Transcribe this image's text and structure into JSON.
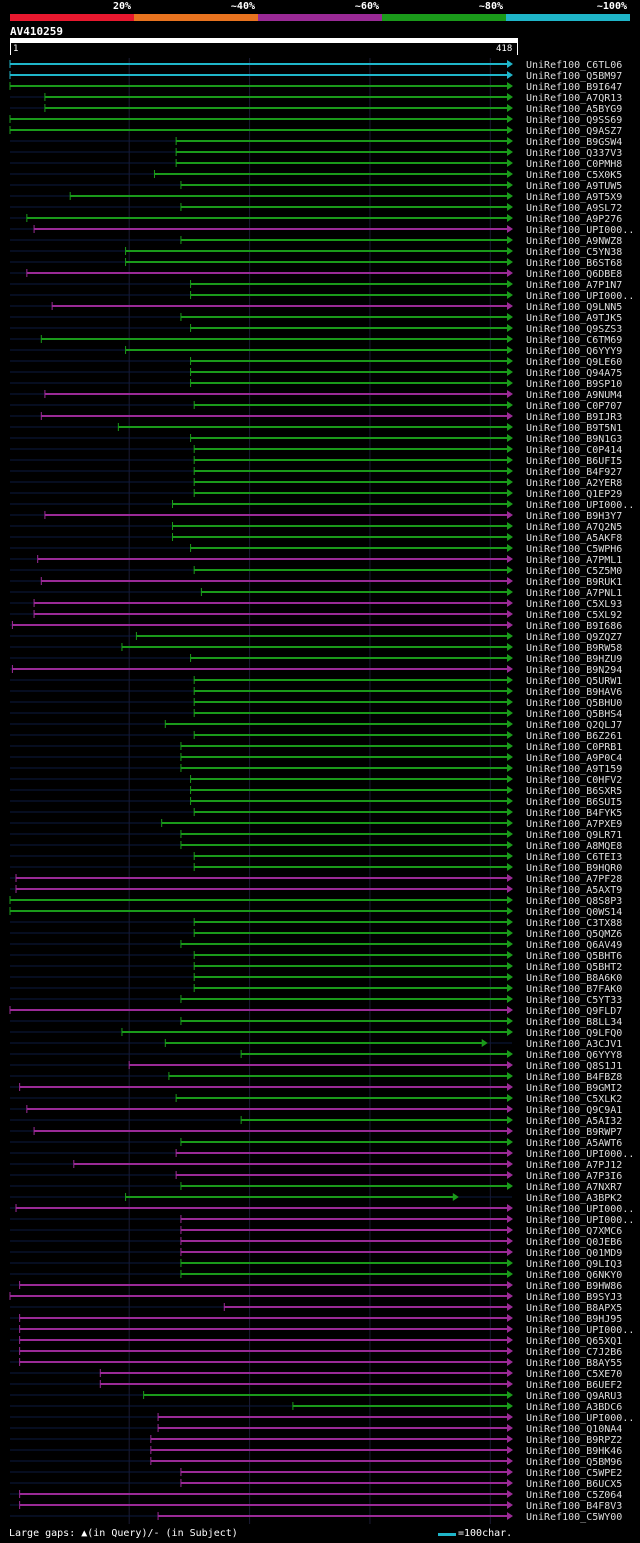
{
  "legend": {
    "labels": [
      "20%",
      "~40%",
      "~60%",
      "~80%",
      "~100%"
    ],
    "colors": [
      "#e8182e",
      "#e8731f",
      "#9a2a96",
      "#1a9a1a",
      "#1fb5c9"
    ]
  },
  "query": {
    "name": "AV410259",
    "start": "1",
    "end": "418",
    "length": 418
  },
  "hits": [
    {
      "name": "UniRef100_C6TL06",
      "color": "cyan",
      "start": 1,
      "end": 418
    },
    {
      "name": "UniRef100_Q5BM97",
      "color": "cyan",
      "start": 1,
      "end": 418
    },
    {
      "name": "UniRef100_B9I647",
      "color": "green",
      "start": 1,
      "end": 418
    },
    {
      "name": "UniRef100_A7QR13",
      "color": "green",
      "start": 30,
      "end": 418
    },
    {
      "name": "UniRef100_A5BYG9",
      "color": "green",
      "start": 30,
      "end": 418
    },
    {
      "name": "UniRef100_Q9SS69",
      "color": "green",
      "start": 1,
      "end": 418
    },
    {
      "name": "UniRef100_Q9ASZ7",
      "color": "green",
      "start": 1,
      "end": 418
    },
    {
      "name": "UniRef100_B9GSW4",
      "color": "green",
      "start": 139,
      "end": 418
    },
    {
      "name": "UniRef100_Q337V3",
      "color": "green",
      "start": 139,
      "end": 418
    },
    {
      "name": "UniRef100_C0PMH8",
      "color": "green",
      "start": 139,
      "end": 418
    },
    {
      "name": "UniRef100_C5X0K5",
      "color": "green",
      "start": 121,
      "end": 418
    },
    {
      "name": "UniRef100_A9TUW5",
      "color": "green",
      "start": 143,
      "end": 418
    },
    {
      "name": "UniRef100_A9T5X9",
      "color": "green",
      "start": 51,
      "end": 418
    },
    {
      "name": "UniRef100_A9SL72",
      "color": "green",
      "start": 143,
      "end": 418
    },
    {
      "name": "UniRef100_A9P276",
      "color": "green",
      "start": 15,
      "end": 418
    },
    {
      "name": "UniRef100_UPI000..",
      "color": "purple",
      "start": 21,
      "end": 418
    },
    {
      "name": "UniRef100_A9NWZ8",
      "color": "green",
      "start": 143,
      "end": 418
    },
    {
      "name": "UniRef100_C5YN38",
      "color": "green",
      "start": 97,
      "end": 418
    },
    {
      "name": "UniRef100_B6ST68",
      "color": "green",
      "start": 97,
      "end": 418
    },
    {
      "name": "UniRef100_Q6DBE8",
      "color": "purple",
      "start": 15,
      "end": 418
    },
    {
      "name": "UniRef100_A7P1N7",
      "color": "green",
      "start": 151,
      "end": 418
    },
    {
      "name": "UniRef100_UPI000..",
      "color": "green",
      "start": 151,
      "end": 418
    },
    {
      "name": "UniRef100_Q9LNN5",
      "color": "purple",
      "start": 36,
      "end": 418
    },
    {
      "name": "UniRef100_A9TJK5",
      "color": "green",
      "start": 143,
      "end": 418
    },
    {
      "name": "UniRef100_Q9SZS3",
      "color": "green",
      "start": 151,
      "end": 418
    },
    {
      "name": "UniRef100_C6TM69",
      "color": "green",
      "start": 27,
      "end": 418
    },
    {
      "name": "UniRef100_Q6YYY9",
      "color": "green",
      "start": 97,
      "end": 418
    },
    {
      "name": "UniRef100_Q9LE60",
      "color": "green",
      "start": 151,
      "end": 418
    },
    {
      "name": "UniRef100_Q94A75",
      "color": "green",
      "start": 151,
      "end": 418
    },
    {
      "name": "UniRef100_B9SP10",
      "color": "green",
      "start": 151,
      "end": 418
    },
    {
      "name": "UniRef100_A9NUM4",
      "color": "purple",
      "start": 30,
      "end": 418
    },
    {
      "name": "UniRef100_C0P707",
      "color": "green",
      "start": 154,
      "end": 418
    },
    {
      "name": "UniRef100_B9IJR3",
      "color": "purple",
      "start": 27,
      "end": 418
    },
    {
      "name": "UniRef100_B9T5N1",
      "color": "green",
      "start": 91,
      "end": 418
    },
    {
      "name": "UniRef100_B9N1G3",
      "color": "green",
      "start": 151,
      "end": 418
    },
    {
      "name": "UniRef100_C0P414",
      "color": "green",
      "start": 154,
      "end": 418
    },
    {
      "name": "UniRef100_B6UFI5",
      "color": "green",
      "start": 154,
      "end": 418
    },
    {
      "name": "UniRef100_B4F927",
      "color": "green",
      "start": 154,
      "end": 418
    },
    {
      "name": "UniRef100_A2YER8",
      "color": "green",
      "start": 154,
      "end": 418
    },
    {
      "name": "UniRef100_Q1EP29",
      "color": "green",
      "start": 154,
      "end": 418
    },
    {
      "name": "UniRef100_UPI000..",
      "color": "green",
      "start": 136,
      "end": 418
    },
    {
      "name": "UniRef100_B9H3Y7",
      "color": "purple",
      "start": 30,
      "end": 418
    },
    {
      "name": "UniRef100_A7Q2N5",
      "color": "green",
      "start": 136,
      "end": 418
    },
    {
      "name": "UniRef100_A5AKF8",
      "color": "green",
      "start": 136,
      "end": 418
    },
    {
      "name": "UniRef100_C5WPH6",
      "color": "green",
      "start": 151,
      "end": 418
    },
    {
      "name": "UniRef100_A7PML1",
      "color": "purple",
      "start": 24,
      "end": 418
    },
    {
      "name": "UniRef100_C5Z5M0",
      "color": "green",
      "start": 154,
      "end": 418
    },
    {
      "name": "UniRef100_B9RUK1",
      "color": "purple",
      "start": 27,
      "end": 418
    },
    {
      "name": "UniRef100_A7PNL1",
      "color": "green",
      "start": 160,
      "end": 418
    },
    {
      "name": "UniRef100_C5XL93",
      "color": "purple",
      "start": 21,
      "end": 418
    },
    {
      "name": "UniRef100_C5XL92",
      "color": "purple",
      "start": 21,
      "end": 418
    },
    {
      "name": "UniRef100_B9I686",
      "color": "purple",
      "start": 3,
      "end": 418
    },
    {
      "name": "UniRef100_Q9ZQZ7",
      "color": "green",
      "start": 106,
      "end": 418
    },
    {
      "name": "UniRef100_B9RW58",
      "color": "green",
      "start": 94,
      "end": 418
    },
    {
      "name": "UniRef100_B9HZU9",
      "color": "green",
      "start": 151,
      "end": 418
    },
    {
      "name": "UniRef100_B9N294",
      "color": "purple",
      "start": 3,
      "end": 418
    },
    {
      "name": "UniRef100_Q5URW1",
      "color": "green",
      "start": 154,
      "end": 418
    },
    {
      "name": "UniRef100_B9HAV6",
      "color": "green",
      "start": 154,
      "end": 418
    },
    {
      "name": "UniRef100_Q5BHU0",
      "color": "green",
      "start": 154,
      "end": 418
    },
    {
      "name": "UniRef100_Q5BHS4",
      "color": "green",
      "start": 154,
      "end": 418
    },
    {
      "name": "UniRef100_Q2QLJ7",
      "color": "green",
      "start": 130,
      "end": 418
    },
    {
      "name": "UniRef100_B6Z261",
      "color": "green",
      "start": 154,
      "end": 418
    },
    {
      "name": "UniRef100_C0PRB1",
      "color": "green",
      "start": 143,
      "end": 418
    },
    {
      "name": "UniRef100_A9P0C4",
      "color": "green",
      "start": 143,
      "end": 418
    },
    {
      "name": "UniRef100_A9T159",
      "color": "green",
      "start": 143,
      "end": 418
    },
    {
      "name": "UniRef100_C0HFV2",
      "color": "green",
      "start": 151,
      "end": 418
    },
    {
      "name": "UniRef100_B6SXR5",
      "color": "green",
      "start": 151,
      "end": 418
    },
    {
      "name": "UniRef100_B6SUI5",
      "color": "green",
      "start": 151,
      "end": 418
    },
    {
      "name": "UniRef100_B4FYK5",
      "color": "green",
      "start": 154,
      "end": 418
    },
    {
      "name": "UniRef100_A7PXE9",
      "color": "green",
      "start": 127,
      "end": 418
    },
    {
      "name": "UniRef100_Q9LR71",
      "color": "green",
      "start": 143,
      "end": 418
    },
    {
      "name": "UniRef100_A8MQE8",
      "color": "green",
      "start": 143,
      "end": 418
    },
    {
      "name": "UniRef100_C6TEI3",
      "color": "green",
      "start": 154,
      "end": 418
    },
    {
      "name": "UniRef100_B9HQR0",
      "color": "green",
      "start": 154,
      "end": 418
    },
    {
      "name": "UniRef100_A7PF28",
      "color": "purple",
      "start": 6,
      "end": 418
    },
    {
      "name": "UniRef100_A5AXT9",
      "color": "purple",
      "start": 6,
      "end": 418
    },
    {
      "name": "UniRef100_Q8S8P3",
      "color": "green",
      "start": 1,
      "end": 418
    },
    {
      "name": "UniRef100_Q0WS14",
      "color": "green",
      "start": 1,
      "end": 418
    },
    {
      "name": "UniRef100_C3TX88",
      "color": "green",
      "start": 154,
      "end": 418
    },
    {
      "name": "UniRef100_Q5QMZ6",
      "color": "green",
      "start": 154,
      "end": 418
    },
    {
      "name": "UniRef100_Q6AV49",
      "color": "green",
      "start": 143,
      "end": 418
    },
    {
      "name": "UniRef100_Q5BHT6",
      "color": "green",
      "start": 154,
      "end": 418
    },
    {
      "name": "UniRef100_Q5BHT2",
      "color": "green",
      "start": 154,
      "end": 418
    },
    {
      "name": "UniRef100_B8A6K0",
      "color": "green",
      "start": 154,
      "end": 418
    },
    {
      "name": "UniRef100_B7FAK0",
      "color": "green",
      "start": 154,
      "end": 418
    },
    {
      "name": "UniRef100_C5YT33",
      "color": "green",
      "start": 143,
      "end": 418
    },
    {
      "name": "UniRef100_Q9FLD7",
      "color": "purple",
      "start": 1,
      "end": 418
    },
    {
      "name": "UniRef100_B8LL34",
      "color": "green",
      "start": 143,
      "end": 418
    },
    {
      "name": "UniRef100_Q9LFQ0",
      "color": "green",
      "start": 94,
      "end": 418
    },
    {
      "name": "UniRef100_A3CJV1",
      "color": "green",
      "start": 130,
      "end": 397
    },
    {
      "name": "UniRef100_Q6YYY8",
      "color": "green",
      "start": 193,
      "end": 418
    },
    {
      "name": "UniRef100_Q8S1J1",
      "color": "purple",
      "start": 100,
      "end": 418
    },
    {
      "name": "UniRef100_B4FBZ8",
      "color": "green",
      "start": 133,
      "end": 418
    },
    {
      "name": "UniRef100_B9GMI2",
      "color": "purple",
      "start": 9,
      "end": 418
    },
    {
      "name": "UniRef100_C5XLK2",
      "color": "green",
      "start": 139,
      "end": 418
    },
    {
      "name": "UniRef100_Q9C9A1",
      "color": "purple",
      "start": 15,
      "end": 418
    },
    {
      "name": "UniRef100_A5AI32",
      "color": "green",
      "start": 193,
      "end": 418
    },
    {
      "name": "UniRef100_B9RWP7",
      "color": "purple",
      "start": 21,
      "end": 418
    },
    {
      "name": "UniRef100_A5AWT6",
      "color": "green",
      "start": 143,
      "end": 418
    },
    {
      "name": "UniRef100_UPI000..",
      "color": "purple",
      "start": 139,
      "end": 418
    },
    {
      "name": "UniRef100_A7PJ12",
      "color": "purple",
      "start": 54,
      "end": 418
    },
    {
      "name": "UniRef100_A7P3I6",
      "color": "purple",
      "start": 139,
      "end": 418
    },
    {
      "name": "UniRef100_A7NXR7",
      "color": "green",
      "start": 143,
      "end": 418
    },
    {
      "name": "UniRef100_A3BPK2",
      "color": "green",
      "start": 97,
      "end": 373
    },
    {
      "name": "UniRef100_UPI000..",
      "color": "purple",
      "start": 6,
      "end": 418
    },
    {
      "name": "UniRef100_UPI000..",
      "color": "purple",
      "start": 143,
      "end": 418
    },
    {
      "name": "UniRef100_Q7XMC6",
      "color": "purple",
      "start": 143,
      "end": 418
    },
    {
      "name": "UniRef100_Q0JEB6",
      "color": "purple",
      "start": 143,
      "end": 418
    },
    {
      "name": "UniRef100_Q01MD9",
      "color": "purple",
      "start": 143,
      "end": 418
    },
    {
      "name": "UniRef100_Q9LIQ3",
      "color": "green",
      "start": 143,
      "end": 418
    },
    {
      "name": "UniRef100_Q6NKY0",
      "color": "green",
      "start": 143,
      "end": 418
    },
    {
      "name": "UniRef100_B9HW86",
      "color": "purple",
      "start": 9,
      "end": 418
    },
    {
      "name": "UniRef100_B9SYJ3",
      "color": "purple",
      "start": 1,
      "end": 418
    },
    {
      "name": "UniRef100_B8APX5",
      "color": "purple",
      "start": 179,
      "end": 418
    },
    {
      "name": "UniRef100_B9HJ95",
      "color": "purple",
      "start": 9,
      "end": 418
    },
    {
      "name": "UniRef100_UPI000..",
      "color": "purple",
      "start": 9,
      "end": 418
    },
    {
      "name": "UniRef100_Q65XQ1",
      "color": "purple",
      "start": 9,
      "end": 418
    },
    {
      "name": "UniRef100_C7J2B6",
      "color": "purple",
      "start": 9,
      "end": 418
    },
    {
      "name": "UniRef100_B8AY55",
      "color": "purple",
      "start": 9,
      "end": 418
    },
    {
      "name": "UniRef100_C5XE70",
      "color": "purple",
      "start": 76,
      "end": 418
    },
    {
      "name": "UniRef100_B6UEF2",
      "color": "purple",
      "start": 76,
      "end": 418
    },
    {
      "name": "UniRef100_Q9ARU3",
      "color": "green",
      "start": 112,
      "end": 418
    },
    {
      "name": "UniRef100_A3BDC6",
      "color": "green",
      "start": 236,
      "end": 418
    },
    {
      "name": "UniRef100_UPI000..",
      "color": "purple",
      "start": 124,
      "end": 418
    },
    {
      "name": "UniRef100_Q10NA4",
      "color": "purple",
      "start": 124,
      "end": 418
    },
    {
      "name": "UniRef100_B9RPZ2",
      "color": "purple",
      "start": 118,
      "end": 418
    },
    {
      "name": "UniRef100_B9HK46",
      "color": "purple",
      "start": 118,
      "end": 418
    },
    {
      "name": "UniRef100_Q5BM96",
      "color": "purple",
      "start": 118,
      "end": 418
    },
    {
      "name": "UniRef100_C5WPE2",
      "color": "purple",
      "start": 143,
      "end": 418
    },
    {
      "name": "UniRef100_B6UCX5",
      "color": "purple",
      "start": 143,
      "end": 418
    },
    {
      "name": "UniRef100_C5Z064",
      "color": "purple",
      "start": 9,
      "end": 418
    },
    {
      "name": "UniRef100_B4F8V3",
      "color": "purple",
      "start": 9,
      "end": 418
    },
    {
      "name": "UniRef100_C5WY00",
      "color": "purple",
      "start": 124,
      "end": 418
    }
  ],
  "footer": {
    "gaps_text": "Large gaps: ▲(in Query)/- (in Subject)",
    "scale_text": "=100char."
  }
}
